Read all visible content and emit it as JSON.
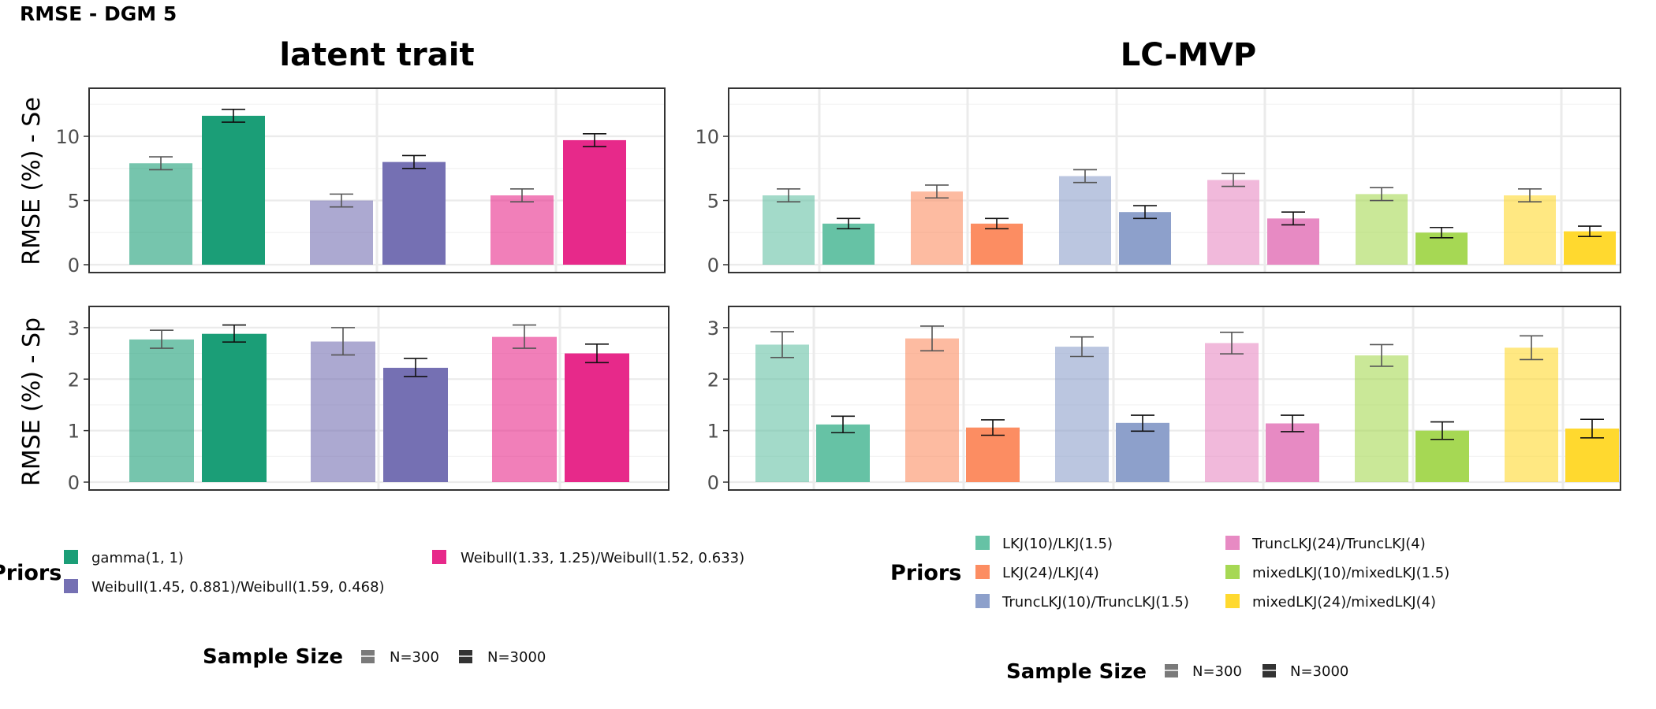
{
  "figure_title": "RMSE - DGM 5",
  "y_labels": {
    "se": "RMSE (%) - Se",
    "sp": "RMSE (%) - Sp"
  },
  "colors": {
    "lt_gamma": "#1b9e77",
    "lt_w1": "#7570b3",
    "lt_w2": "#e7298a",
    "mvp_1": "#66c2a5",
    "mvp_2": "#fc8d62",
    "mvp_3": "#8da0cb",
    "mvp_4": "#e78ac3",
    "mvp_5": "#a6d854",
    "mvp_6": "#ffd92f",
    "grid": "#ebebeb",
    "frame": "#333333"
  },
  "legend_left": {
    "title": "Priors",
    "items": [
      {
        "label": "gamma(1, 1)",
        "color": "#1b9e77"
      },
      {
        "label": "Weibull(1.45, 0.881)/Weibull(1.59, 0.468)",
        "color": "#7570b3"
      },
      {
        "label": "Weibull(1.33, 1.25)/Weibull(1.52, 0.633)",
        "color": "#e7298a"
      }
    ],
    "sample_title": "Sample Size",
    "sample_items": [
      "N=300",
      "N=3000"
    ]
  },
  "legend_right": {
    "title": "Priors",
    "items": [
      {
        "label": "LKJ(10)/LKJ(1.5)",
        "color": "#66c2a5"
      },
      {
        "label": "LKJ(24)/LKJ(4)",
        "color": "#fc8d62"
      },
      {
        "label": "TruncLKJ(10)/TruncLKJ(1.5)",
        "color": "#8da0cb"
      },
      {
        "label": "TruncLKJ(24)/TruncLKJ(4)",
        "color": "#e78ac3"
      },
      {
        "label": "mixedLKJ(10)/mixedLKJ(1.5)",
        "color": "#a6d854"
      },
      {
        "label": "mixedLKJ(24)/mixedLKJ(4)",
        "color": "#ffd92f"
      }
    ],
    "sample_title": "Sample Size",
    "sample_items": [
      "N=300",
      "N=3000"
    ]
  },
  "chart_data": [
    {
      "type": "bar",
      "model": "latent trait",
      "metric": "Se",
      "ylabel": "RMSE (%) - Se",
      "ylim": [
        0,
        13.5
      ],
      "ticks": [
        0,
        5,
        10
      ],
      "sample_sizes": [
        "N=300",
        "N=3000"
      ],
      "groups": [
        {
          "prior": "gamma(1, 1)",
          "color": "#1b9e77",
          "values": [
            7.9,
            11.6
          ],
          "err": [
            [
              7.4,
              8.4
            ],
            [
              11.1,
              12.1
            ]
          ]
        },
        {
          "prior": "Weibull(1.45, 0.881)/Weibull(1.59, 0.468)",
          "color": "#7570b3",
          "values": [
            5.0,
            8.0
          ],
          "err": [
            [
              4.5,
              5.5
            ],
            [
              7.5,
              8.5
            ]
          ]
        },
        {
          "prior": "Weibull(1.33, 1.25)/Weibull(1.52, 0.633)",
          "color": "#e7298a",
          "values": [
            5.4,
            9.7
          ],
          "err": [
            [
              4.9,
              5.9
            ],
            [
              9.2,
              10.2
            ]
          ]
        }
      ]
    },
    {
      "type": "bar",
      "model": "LC-MVP",
      "metric": "Se",
      "ylabel": "RMSE (%) - Se",
      "ylim": [
        0,
        13.5
      ],
      "ticks": [
        0,
        5,
        10
      ],
      "sample_sizes": [
        "N=300",
        "N=3000"
      ],
      "groups": [
        {
          "prior": "LKJ(10)/LKJ(1.5)",
          "color": "#66c2a5",
          "values": [
            5.4,
            3.2
          ],
          "err": [
            [
              4.9,
              5.9
            ],
            [
              2.8,
              3.6
            ]
          ]
        },
        {
          "prior": "LKJ(24)/LKJ(4)",
          "color": "#fc8d62",
          "values": [
            5.7,
            3.2
          ],
          "err": [
            [
              5.2,
              6.2
            ],
            [
              2.8,
              3.6
            ]
          ]
        },
        {
          "prior": "TruncLKJ(10)/TruncLKJ(1.5)",
          "color": "#8da0cb",
          "values": [
            6.9,
            4.1
          ],
          "err": [
            [
              6.4,
              7.4
            ],
            [
              3.6,
              4.6
            ]
          ]
        },
        {
          "prior": "TruncLKJ(24)/TruncLKJ(4)",
          "color": "#e78ac3",
          "values": [
            6.6,
            3.6
          ],
          "err": [
            [
              6.1,
              7.1
            ],
            [
              3.1,
              4.1
            ]
          ]
        },
        {
          "prior": "mixedLKJ(10)/mixedLKJ(1.5)",
          "color": "#a6d854",
          "values": [
            5.5,
            2.5
          ],
          "err": [
            [
              5.0,
              6.0
            ],
            [
              2.1,
              2.9
            ]
          ]
        },
        {
          "prior": "mixedLKJ(24)/mixedLKJ(4)",
          "color": "#ffd92f",
          "values": [
            5.4,
            2.6
          ],
          "err": [
            [
              4.9,
              5.9
            ],
            [
              2.2,
              3.0
            ]
          ]
        }
      ]
    },
    {
      "type": "bar",
      "model": "latent trait",
      "metric": "Sp",
      "ylabel": "RMSE (%) - Sp",
      "ylim": [
        0,
        3.35
      ],
      "ticks": [
        0,
        1,
        2,
        3
      ],
      "sample_sizes": [
        "N=300",
        "N=3000"
      ],
      "groups": [
        {
          "prior": "gamma(1, 1)",
          "color": "#1b9e77",
          "values": [
            2.77,
            2.88
          ],
          "err": [
            [
              2.6,
              2.95
            ],
            [
              2.72,
              3.05
            ]
          ]
        },
        {
          "prior": "Weibull(1.45, 0.881)/Weibull(1.59, 0.468)",
          "color": "#7570b3",
          "values": [
            2.73,
            2.22
          ],
          "err": [
            [
              2.47,
              3.0
            ],
            [
              2.05,
              2.4
            ]
          ]
        },
        {
          "prior": "Weibull(1.33, 1.25)/Weibull(1.52, 0.633)",
          "color": "#e7298a",
          "values": [
            2.82,
            2.5
          ],
          "err": [
            [
              2.6,
              3.05
            ],
            [
              2.32,
              2.68
            ]
          ]
        }
      ]
    },
    {
      "type": "bar",
      "model": "LC-MVP",
      "metric": "Sp",
      "ylabel": "RMSE (%) - Sp",
      "ylim": [
        0,
        3.35
      ],
      "ticks": [
        0,
        1,
        2,
        3
      ],
      "sample_sizes": [
        "N=300",
        "N=3000"
      ],
      "groups": [
        {
          "prior": "LKJ(10)/LKJ(1.5)",
          "color": "#66c2a5",
          "values": [
            2.67,
            1.12
          ],
          "err": [
            [
              2.42,
              2.92
            ],
            [
              0.96,
              1.28
            ]
          ]
        },
        {
          "prior": "LKJ(24)/LKJ(4)",
          "color": "#fc8d62",
          "values": [
            2.79,
            1.06
          ],
          "err": [
            [
              2.55,
              3.03
            ],
            [
              0.91,
              1.21
            ]
          ]
        },
        {
          "prior": "TruncLKJ(10)/TruncLKJ(1.5)",
          "color": "#8da0cb",
          "values": [
            2.63,
            1.15
          ],
          "err": [
            [
              2.44,
              2.82
            ],
            [
              0.99,
              1.3
            ]
          ]
        },
        {
          "prior": "TruncLKJ(24)/TruncLKJ(4)",
          "color": "#e78ac3",
          "values": [
            2.7,
            1.14
          ],
          "err": [
            [
              2.49,
              2.91
            ],
            [
              0.98,
              1.3
            ]
          ]
        },
        {
          "prior": "mixedLKJ(10)/mixedLKJ(1.5)",
          "color": "#a6d854",
          "values": [
            2.46,
            1.0
          ],
          "err": [
            [
              2.25,
              2.67
            ],
            [
              0.83,
              1.17
            ]
          ]
        },
        {
          "prior": "mixedLKJ(24)/mixedLKJ(4)",
          "color": "#ffd92f",
          "values": [
            2.61,
            1.04
          ],
          "err": [
            [
              2.38,
              2.84
            ],
            [
              0.86,
              1.22
            ]
          ]
        }
      ]
    }
  ]
}
